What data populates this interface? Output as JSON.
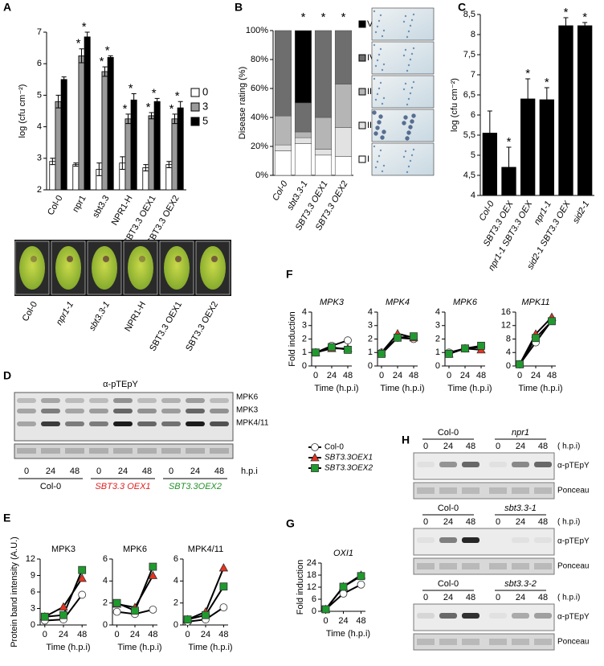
{
  "chart_data": [
    {
      "type": "bar",
      "panel": "A",
      "ylabel": "log (cfu cm⁻²)",
      "categories": [
        "Col-0",
        "npr1",
        "sbt3.3",
        "NPR1-H",
        "SBT3.3 OEX1",
        "SBT3.3 OEX2"
      ],
      "ylim": [
        2,
        7
      ],
      "yticks": [
        2,
        3,
        4,
        5,
        6,
        7
      ],
      "legend": "right",
      "series": [
        {
          "name": "0",
          "color": "#ffffff",
          "values": [
            2.9,
            2.8,
            2.65,
            2.85,
            2.7,
            2.8
          ],
          "errors": [
            0.1,
            0.05,
            0.2,
            0.2,
            0.1,
            0.1
          ]
        },
        {
          "name": "3",
          "color": "#9a9a9a",
          "values": [
            4.8,
            6.25,
            5.75,
            4.25,
            4.35,
            4.25
          ],
          "errors": [
            0.2,
            0.22,
            0.15,
            0.15,
            0.1,
            0.15
          ],
          "significance": [
            null,
            "*",
            "*",
            "*",
            "*",
            "*"
          ]
        },
        {
          "name": "5",
          "color": "#000000",
          "values": [
            5.5,
            6.85,
            6.2,
            4.85,
            4.8,
            4.6
          ],
          "errors": [
            0.08,
            0.15,
            0.05,
            0.2,
            0.1,
            0.2
          ],
          "significance": [
            null,
            "*",
            "*",
            "*",
            "*",
            "*"
          ]
        }
      ]
    },
    {
      "type": "stacked_bar",
      "panel": "B",
      "ylabel": "Disease rating (%)",
      "categories": [
        "Col-0",
        "sbt3.3-1",
        "SBT3.3 OEX1",
        "SBT3.3 OEX2"
      ],
      "italic_labels": true,
      "ylim": [
        0,
        100
      ],
      "yticks": [
        {
          "value": 0,
          "label": "0%"
        },
        {
          "value": 20,
          "label": "20%"
        },
        {
          "value": 40,
          "label": "40%"
        },
        {
          "value": 60,
          "label": "60%"
        },
        {
          "value": 80,
          "label": "80%"
        },
        {
          "value": 100,
          "label": "100%"
        }
      ],
      "significance": [
        null,
        "*",
        "*",
        "*"
      ],
      "series": [
        {
          "name": "I",
          "color": "#ffffff",
          "values": [
            17,
            22,
            14,
            13
          ]
        },
        {
          "name": "II",
          "color": "#e2e2e2",
          "values": [
            4,
            4,
            4,
            20
          ]
        },
        {
          "name": "III",
          "color": "#b5b5b5",
          "values": [
            20,
            4,
            22,
            30
          ]
        },
        {
          "name": "IV",
          "color": "#6e6e6e",
          "values": [
            59,
            20,
            60,
            37
          ]
        },
        {
          "name": "V",
          "color": "#000000",
          "values": [
            0,
            50,
            0,
            0
          ]
        }
      ]
    },
    {
      "type": "bar",
      "panel": "C",
      "ylabel": "log (cfu cm⁻²)",
      "categories": [
        "Col-0",
        "SBT3.3 OEX",
        "npr1-1 SBT3.3 OEX",
        "npr1-1",
        "sid2-1 SBT3.3 OEX",
        "sid2-1"
      ],
      "italic_labels": true,
      "ylim": [
        4,
        8.5
      ],
      "yticks": [
        4,
        {
          "value": 4.5,
          "label": "4,5"
        },
        5,
        {
          "value": 5.5,
          "label": "5,5"
        },
        6,
        {
          "value": 6.5,
          "label": "6,5"
        },
        7,
        {
          "value": 7.5,
          "label": "7,5"
        },
        8,
        {
          "value": 8.5,
          "label": "8,5"
        }
      ],
      "series": [
        {
          "color": "#000000",
          "values": [
            5.55,
            4.7,
            6.4,
            6.38,
            8.22,
            8.22
          ],
          "errors": [
            0.55,
            0.5,
            0.5,
            0.3,
            0.2,
            0.08
          ],
          "significance": [
            null,
            "*",
            "*",
            "*",
            "*",
            "*"
          ]
        }
      ]
    },
    {
      "type": "line",
      "panel": "E",
      "title": "MPK3",
      "ylabel": "Protein band intensity (A.U.)",
      "xlabel": "Time (h.p.i)",
      "x": [
        0,
        24,
        48
      ],
      "xlim": [
        -6,
        54
      ],
      "xticks": [
        0,
        24,
        48
      ],
      "ylim": [
        0,
        12
      ],
      "yticks": [
        0,
        3,
        6,
        9,
        12
      ],
      "series": [
        {
          "name": "Col-0",
          "color": "#ffffff",
          "marker": "circle",
          "values": [
            0.8,
            1,
            5.5
          ]
        },
        {
          "name": "SBT3.3OEX1",
          "color": "#e8321e",
          "marker": "triangle",
          "values": [
            1.5,
            3.3,
            8.5
          ]
        },
        {
          "name": "SBT3.3OEX2",
          "color": "#1f9a2e",
          "marker": "square",
          "values": [
            1.5,
            1.8,
            10
          ]
        }
      ]
    },
    {
      "type": "line",
      "title": "MPK6",
      "xlabel": "Time (h.p.i)",
      "x": [
        0,
        24,
        48
      ],
      "xlim": [
        -6,
        54
      ],
      "xticks": [
        0,
        24,
        48
      ],
      "ylim": [
        0,
        6
      ],
      "yticks": [
        0,
        2,
        4,
        6
      ],
      "series": [
        {
          "name": "Col-0",
          "color": "#ffffff",
          "marker": "circle",
          "values": [
            1.2,
            1.0,
            1.4
          ]
        },
        {
          "name": "SBT3.3OEX1",
          "color": "#e8321e",
          "marker": "triangle",
          "values": [
            1.9,
            1.6,
            4.5
          ]
        },
        {
          "name": "SBT3.3OEX2",
          "color": "#1f9a2e",
          "marker": "square",
          "values": [
            2,
            1.3,
            5.3
          ]
        }
      ]
    },
    {
      "type": "line",
      "title": "MPK4/11",
      "xlabel": "Time (h.p.i)",
      "x": [
        0,
        24,
        48
      ],
      "xlim": [
        -6,
        54
      ],
      "xticks": [
        0,
        24,
        48
      ],
      "ylim": [
        0,
        6
      ],
      "yticks": [
        0,
        2,
        4,
        6
      ],
      "series": [
        {
          "name": "Col-0",
          "color": "#ffffff",
          "marker": "circle",
          "values": [
            0.3,
            0.5,
            1.6
          ]
        },
        {
          "name": "SBT3.3OEX1",
          "color": "#e8321e",
          "marker": "triangle",
          "values": [
            0.5,
            1.2,
            5.2
          ]
        },
        {
          "name": "SBT3.3OEX2",
          "color": "#1f9a2e",
          "marker": "square",
          "values": [
            0.5,
            0.9,
            3.5
          ]
        }
      ]
    },
    {
      "type": "line",
      "panel": "F",
      "title": "MPK3",
      "italic_title": true,
      "ylabel": "Fold induction",
      "xlabel": "Time (h.p.i)",
      "x": [
        0,
        24,
        48
      ],
      "xlim": [
        -6,
        54
      ],
      "xticks": [
        0,
        24,
        48
      ],
      "ylim": [
        0,
        4
      ],
      "yticks": [
        0,
        1,
        2,
        3,
        4
      ],
      "series": [
        {
          "name": "Col-0",
          "color": "#ffffff",
          "marker": "circle",
          "values": [
            1,
            1.5,
            1.9
          ]
        },
        {
          "name": "SBT3.3OEX1",
          "color": "#e8321e",
          "marker": "triangle",
          "values": [
            1,
            1.3,
            1.3
          ]
        },
        {
          "name": "SBT3.3OEX2",
          "color": "#1f9a2e",
          "marker": "square",
          "values": [
            1,
            1.4,
            1.2
          ]
        }
      ]
    },
    {
      "type": "line",
      "title": "MPK4",
      "italic_title": true,
      "xlabel": "Time (h.p.i)",
      "x": [
        0,
        24,
        48
      ],
      "xlim": [
        -6,
        54
      ],
      "xticks": [
        0,
        24,
        48
      ],
      "ylim": [
        0,
        4
      ],
      "yticks": [
        0,
        1,
        2,
        3,
        4
      ],
      "series": [
        {
          "name": "Col-0",
          "color": "#ffffff",
          "marker": "circle",
          "values": [
            1,
            2.1,
            2
          ]
        },
        {
          "name": "SBT3.3OEX1",
          "color": "#e8321e",
          "marker": "triangle",
          "values": [
            1,
            2.4,
            2.1
          ]
        },
        {
          "name": "SBT3.3OEX2",
          "color": "#1f9a2e",
          "marker": "square",
          "values": [
            0.9,
            2.1,
            2.2
          ]
        }
      ]
    },
    {
      "type": "line",
      "title": "MPK6",
      "italic_title": true,
      "xlabel": "Time (h.p.i)",
      "x": [
        0,
        24,
        48
      ],
      "xlim": [
        -6,
        54
      ],
      "xticks": [
        0,
        24,
        48
      ],
      "ylim": [
        0,
        4
      ],
      "yticks": [
        0,
        1,
        2,
        3,
        4
      ],
      "series": [
        {
          "name": "Col-0",
          "color": "#ffffff",
          "marker": "circle",
          "values": [
            1,
            1.3,
            1.4
          ]
        },
        {
          "name": "SBT3.3OEX1",
          "color": "#e8321e",
          "marker": "triangle",
          "values": [
            0.9,
            1.3,
            1.2
          ]
        },
        {
          "name": "SBT3.3OEX2",
          "color": "#1f9a2e",
          "marker": "square",
          "values": [
            0.9,
            1.3,
            1.5
          ]
        }
      ]
    },
    {
      "type": "line",
      "title": "MPK11",
      "italic_title": true,
      "xlabel": "Time (h.p.i)",
      "x": [
        0,
        24,
        48
      ],
      "xlim": [
        -6,
        54
      ],
      "xticks": [
        0,
        24,
        48
      ],
      "ylim": [
        0,
        16
      ],
      "yticks": [
        0,
        4,
        8,
        12,
        16
      ],
      "series": [
        {
          "name": "Col-0",
          "color": "#ffffff",
          "marker": "circle",
          "values": [
            0.5,
            7,
            13.5
          ]
        },
        {
          "name": "SBT3.3OEX1",
          "color": "#e8321e",
          "marker": "triangle",
          "values": [
            0.5,
            9.5,
            14.5
          ]
        },
        {
          "name": "SBT3.3OEX2",
          "color": "#1f9a2e",
          "marker": "square",
          "values": [
            0.5,
            8.3,
            13.3
          ]
        }
      ]
    },
    {
      "type": "line",
      "panel": "G",
      "title": "OXI1",
      "italic_title": true,
      "ylabel": "Fold induction",
      "xlabel": "Time (h.p.i)",
      "x": [
        0,
        24,
        48
      ],
      "xlim": [
        -6,
        54
      ],
      "xticks": [
        0,
        24,
        48
      ],
      "ylim": [
        0,
        24
      ],
      "yticks": [
        0,
        6,
        12,
        18,
        24
      ],
      "legend": true,
      "series": [
        {
          "name": "Col-0",
          "color": "#ffffff",
          "marker": "circle",
          "values": [
            1,
            8.8,
            13.3
          ]
        },
        {
          "name": "SBT3.3OEX1",
          "color": "#e8321e",
          "marker": "triangle",
          "values": [
            1,
            12.3,
            18
          ]
        },
        {
          "name": "SBT3.3OEX2",
          "color": "#1f9a2e",
          "marker": "square",
          "values": [
            1,
            12.2,
            17.5
          ]
        }
      ]
    }
  ],
  "leaf_photos": {
    "labels": [
      "Col-0",
      "npr1-1",
      "sbt3.3-1",
      "NPR1-H",
      "SBT3.3 OEX1",
      "SBT3.3 OEX2"
    ]
  },
  "blot_d": {
    "panel": "D",
    "title": "α-pTEpY",
    "bands": [
      "MPK6",
      "MPK3",
      "MPK4/11"
    ],
    "unit": "h.p.i",
    "lanes": [
      "0",
      "24",
      "48",
      "0",
      "24",
      "48",
      "0",
      "24",
      "48"
    ],
    "groups": [
      {
        "name": "Col-0",
        "color": "#000000"
      },
      {
        "name": "SBT3.3 OEX1",
        "color": "#e02020"
      },
      {
        "name": "SBT3.3OEX2",
        "color": "#22922a"
      }
    ]
  },
  "blot_h": {
    "panel": "H",
    "blocks": [
      {
        "groups": [
          "Col-0",
          "npr1"
        ],
        "unit": "( h.p.i)",
        "lanes": [
          "0",
          "24",
          "48",
          "0",
          "24",
          "48"
        ],
        "rows": [
          "α-pTEpY",
          "Ponceau"
        ]
      },
      {
        "groups": [
          "Col-0",
          "sbt3.3-1"
        ],
        "unit": "( h.p.i)",
        "lanes": [
          "0",
          "24",
          "48",
          "0",
          "24",
          "48"
        ],
        "rows": [
          "α-pTEpY",
          "Ponceau"
        ]
      },
      {
        "groups": [
          "Col-0",
          "sbt3.3-2"
        ],
        "unit": "( h.p.i)",
        "lanes": [
          "0",
          "24",
          "48",
          "0",
          "24",
          "48"
        ],
        "rows": [
          "α-pTEpY",
          "Ponceau"
        ]
      }
    ]
  }
}
